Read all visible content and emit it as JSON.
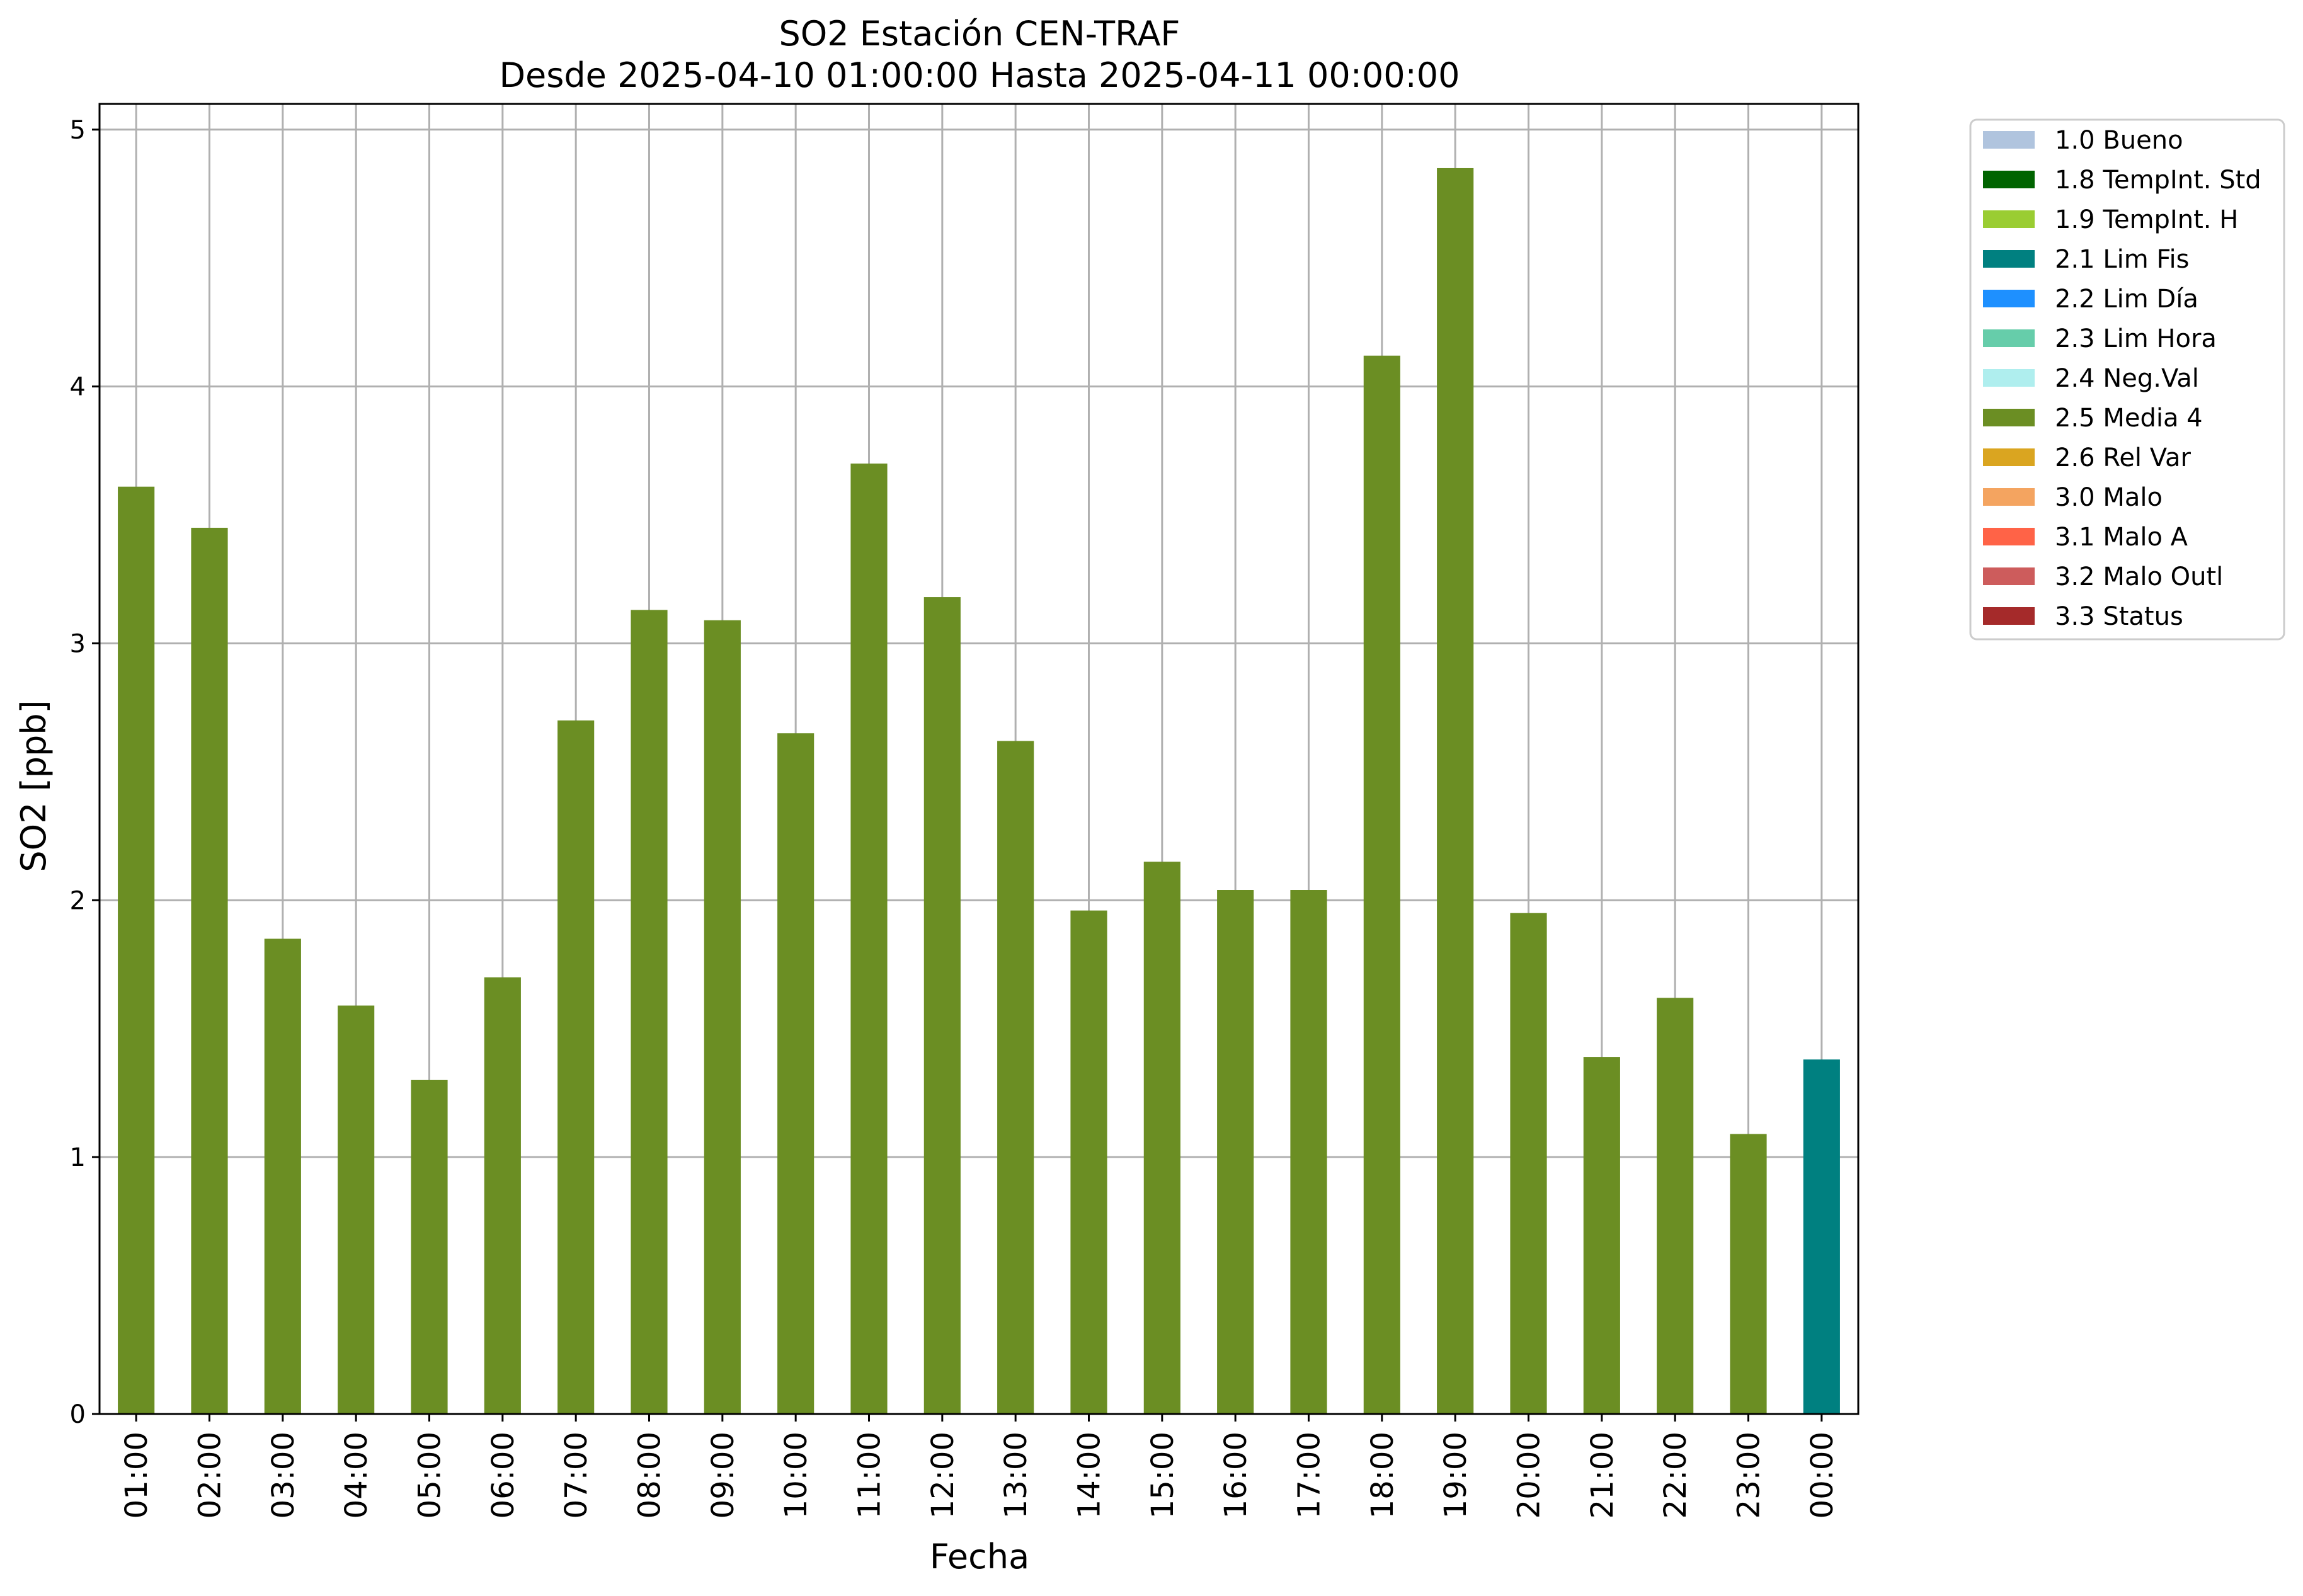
{
  "chart_data": {
    "type": "bar",
    "title": "SO2 Estación CEN-TRAF",
    "subtitle": "Desde 2025-04-10 01:00:00 Hasta 2025-04-11 00:00:00",
    "xlabel": "Fecha",
    "ylabel": "SO2 [ppb]",
    "ylim": [
      0,
      5.1
    ],
    "yticks": [
      "0",
      "1",
      "2",
      "3",
      "4",
      "5"
    ],
    "grid": true,
    "legend_position": "outside-right-top",
    "categories": [
      "01:00",
      "02:00",
      "03:00",
      "04:00",
      "05:00",
      "06:00",
      "07:00",
      "08:00",
      "09:00",
      "10:00",
      "11:00",
      "12:00",
      "13:00",
      "14:00",
      "15:00",
      "16:00",
      "17:00",
      "18:00",
      "19:00",
      "20:00",
      "21:00",
      "22:00",
      "23:00",
      "00:00"
    ],
    "values": [
      3.61,
      3.45,
      1.85,
      1.59,
      1.3,
      1.7,
      2.7,
      3.13,
      3.09,
      2.65,
      3.7,
      3.18,
      2.62,
      1.96,
      2.15,
      2.04,
      2.04,
      4.12,
      4.85,
      1.95,
      1.39,
      1.62,
      1.09,
      1.38
    ],
    "flags": [
      "2.5 Media 4",
      "2.5 Media 4",
      "2.5 Media 4",
      "2.5 Media 4",
      "2.5 Media 4",
      "2.5 Media 4",
      "2.5 Media 4",
      "2.5 Media 4",
      "2.5 Media 4",
      "2.5 Media 4",
      "2.5 Media 4",
      "2.5 Media 4",
      "2.5 Media 4",
      "2.5 Media 4",
      "2.5 Media 4",
      "2.5 Media 4",
      "2.5 Media 4",
      "2.5 Media 4",
      "2.5 Media 4",
      "2.5 Media 4",
      "2.5 Media 4",
      "2.5 Media 4",
      "2.5 Media 4",
      "2.1 Lim Fis"
    ],
    "legend": [
      {
        "label": "1.0 Bueno",
        "color": "#b0c4de"
      },
      {
        "label": "1.8 TempInt. Std",
        "color": "#006400"
      },
      {
        "label": "1.9 TempInt. H",
        "color": "#9acd32"
      },
      {
        "label": "2.1 Lim Fis",
        "color": "#008080"
      },
      {
        "label": "2.2 Lim Día",
        "color": "#1e90ff"
      },
      {
        "label": "2.3 Lim Hora",
        "color": "#66cdaa"
      },
      {
        "label": "2.4 Neg.Val",
        "color": "#afeeee"
      },
      {
        "label": "2.5 Media 4",
        "color": "#6b8e23"
      },
      {
        "label": "2.6 Rel Var",
        "color": "#daa520"
      },
      {
        "label": "3.0 Malo",
        "color": "#f4a460"
      },
      {
        "label": "3.1 Malo A",
        "color": "#ff6347"
      },
      {
        "label": "3.2 Malo Outl",
        "color": "#cd5c5c"
      },
      {
        "label": "3.3 Status",
        "color": "#a52a2a"
      }
    ]
  }
}
